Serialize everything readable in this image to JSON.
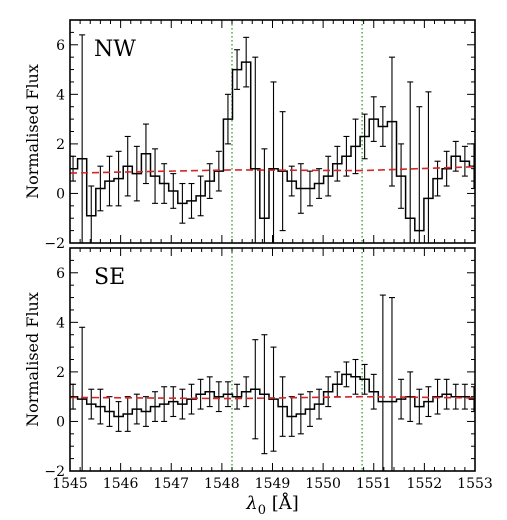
{
  "chart_data": [
    {
      "type": "line",
      "panel_label": "NW",
      "ylabel": "Normalised Flux",
      "xlim": [
        1545,
        1553
      ],
      "ylim": [
        -2,
        7
      ],
      "xticks": [
        1545,
        1546,
        1547,
        1548,
        1549,
        1550,
        1551,
        1552,
        1553
      ],
      "xtick_labels_shown": false,
      "yticks": [
        -2,
        0,
        2,
        4,
        6
      ],
      "ytick_labels": [
        "−2",
        "0",
        "2",
        "4",
        "6"
      ],
      "vlines": [
        1548.2,
        1550.77
      ],
      "x": [
        1545.06,
        1545.24,
        1545.42,
        1545.6,
        1545.78,
        1545.96,
        1546.14,
        1546.32,
        1546.5,
        1546.68,
        1546.86,
        1547.04,
        1547.22,
        1547.4,
        1547.58,
        1547.76,
        1547.94,
        1548.12,
        1548.3,
        1548.48,
        1548.66,
        1548.84,
        1549.02,
        1549.2,
        1549.38,
        1549.56,
        1549.74,
        1549.92,
        1550.1,
        1550.28,
        1550.46,
        1550.64,
        1550.82,
        1551.0,
        1551.18,
        1551.36,
        1551.54,
        1551.72,
        1551.9,
        1552.08,
        1552.26,
        1552.44,
        1552.62,
        1552.8,
        1552.98
      ],
      "flux": [
        1.0,
        1.4,
        -0.9,
        0.2,
        0.5,
        0.6,
        1.1,
        0.8,
        1.6,
        0.7,
        0.4,
        0.1,
        -0.4,
        -0.3,
        -0.1,
        0.5,
        0.9,
        3.0,
        5.0,
        5.3,
        1.0,
        -1.0,
        1.0,
        0.9,
        0.5,
        0.2,
        0.2,
        0.4,
        0.7,
        1.2,
        1.5,
        1.9,
        2.3,
        3.0,
        2.7,
        2.9,
        0.7,
        -1.0,
        -1.5,
        -0.2,
        0.6,
        1.0,
        1.5,
        1.3,
        1.1
      ],
      "err": [
        0.5,
        5.0,
        1.2,
        0.9,
        1.0,
        1.1,
        1.2,
        1.1,
        1.2,
        1.1,
        0.8,
        0.7,
        0.8,
        0.7,
        0.8,
        0.7,
        0.8,
        1.0,
        0.8,
        1.0,
        4.5,
        2.8,
        3.5,
        2.4,
        0.6,
        1.0,
        0.7,
        0.6,
        0.8,
        0.7,
        0.8,
        1.1,
        0.9,
        0.9,
        0.8,
        2.6,
        1.3,
        5.5,
        5.0,
        4.3,
        0.7,
        0.7,
        0.6,
        0.6,
        0.9
      ],
      "model": [
        [
          1545,
          0.82
        ],
        [
          1548.2,
          0.95
        ],
        [
          1550.77,
          0.92
        ],
        [
          1553,
          1.08
        ]
      ]
    },
    {
      "type": "line",
      "panel_label": "SE",
      "ylabel": "Normalised Flux",
      "xlabel_main": "λ",
      "xlabel_sub": "0",
      "xlabel_rest": " [Å]",
      "xlim": [
        1545,
        1553
      ],
      "ylim": [
        -2,
        7
      ],
      "xticks": [
        1545,
        1546,
        1547,
        1548,
        1549,
        1550,
        1551,
        1552,
        1553
      ],
      "xtick_labels": [
        "1545",
        "1546",
        "1547",
        "1548",
        "1549",
        "1550",
        "1551",
        "1552",
        "1553"
      ],
      "yticks": [
        -2,
        0,
        2,
        4,
        6
      ],
      "ytick_labels": [
        "−2",
        "0",
        "2",
        "4",
        "6"
      ],
      "vlines": [
        1548.2,
        1550.77
      ],
      "x": [
        1545.06,
        1545.24,
        1545.42,
        1545.6,
        1545.78,
        1545.96,
        1546.14,
        1546.32,
        1546.5,
        1546.68,
        1546.86,
        1547.04,
        1547.22,
        1547.4,
        1547.58,
        1547.76,
        1547.94,
        1548.12,
        1548.3,
        1548.48,
        1548.66,
        1548.84,
        1549.02,
        1549.2,
        1549.38,
        1549.56,
        1549.74,
        1549.92,
        1550.1,
        1550.28,
        1550.46,
        1550.64,
        1550.82,
        1551.0,
        1551.18,
        1551.36,
        1551.54,
        1551.72,
        1551.9,
        1552.08,
        1552.26,
        1552.44,
        1552.62,
        1552.8,
        1552.98
      ],
      "flux": [
        1.0,
        0.9,
        0.7,
        0.6,
        0.4,
        0.2,
        0.3,
        0.5,
        0.4,
        0.6,
        0.7,
        0.8,
        0.7,
        0.9,
        1.1,
        1.2,
        1.0,
        1.1,
        1.0,
        1.2,
        1.3,
        1.1,
        0.9,
        0.6,
        0.2,
        0.3,
        0.5,
        0.7,
        1.2,
        1.5,
        1.9,
        1.8,
        1.7,
        1.2,
        0.8,
        0.8,
        0.9,
        1.0,
        0.6,
        0.8,
        1.0,
        1.1,
        1.0,
        1.0,
        0.9
      ],
      "err": [
        0.5,
        2.9,
        0.6,
        0.7,
        0.6,
        0.6,
        0.7,
        0.6,
        0.6,
        0.6,
        0.7,
        0.6,
        0.6,
        0.6,
        0.6,
        0.6,
        0.6,
        0.5,
        0.5,
        0.6,
        2.0,
        2.4,
        2.1,
        1.2,
        0.8,
        0.8,
        0.7,
        0.6,
        0.6,
        0.5,
        0.5,
        0.7,
        0.6,
        0.7,
        4.3,
        4.2,
        0.8,
        1.0,
        0.7,
        0.6,
        0.7,
        0.6,
        0.5,
        0.5,
        0.5
      ],
      "model": [
        [
          1545,
          0.97
        ],
        [
          1548.2,
          0.92
        ],
        [
          1550.77,
          1.0
        ],
        [
          1553,
          0.95
        ]
      ]
    }
  ],
  "colors": {
    "spectrum": "#000000",
    "model": "#d62728",
    "vlines": "#2ca02c"
  }
}
